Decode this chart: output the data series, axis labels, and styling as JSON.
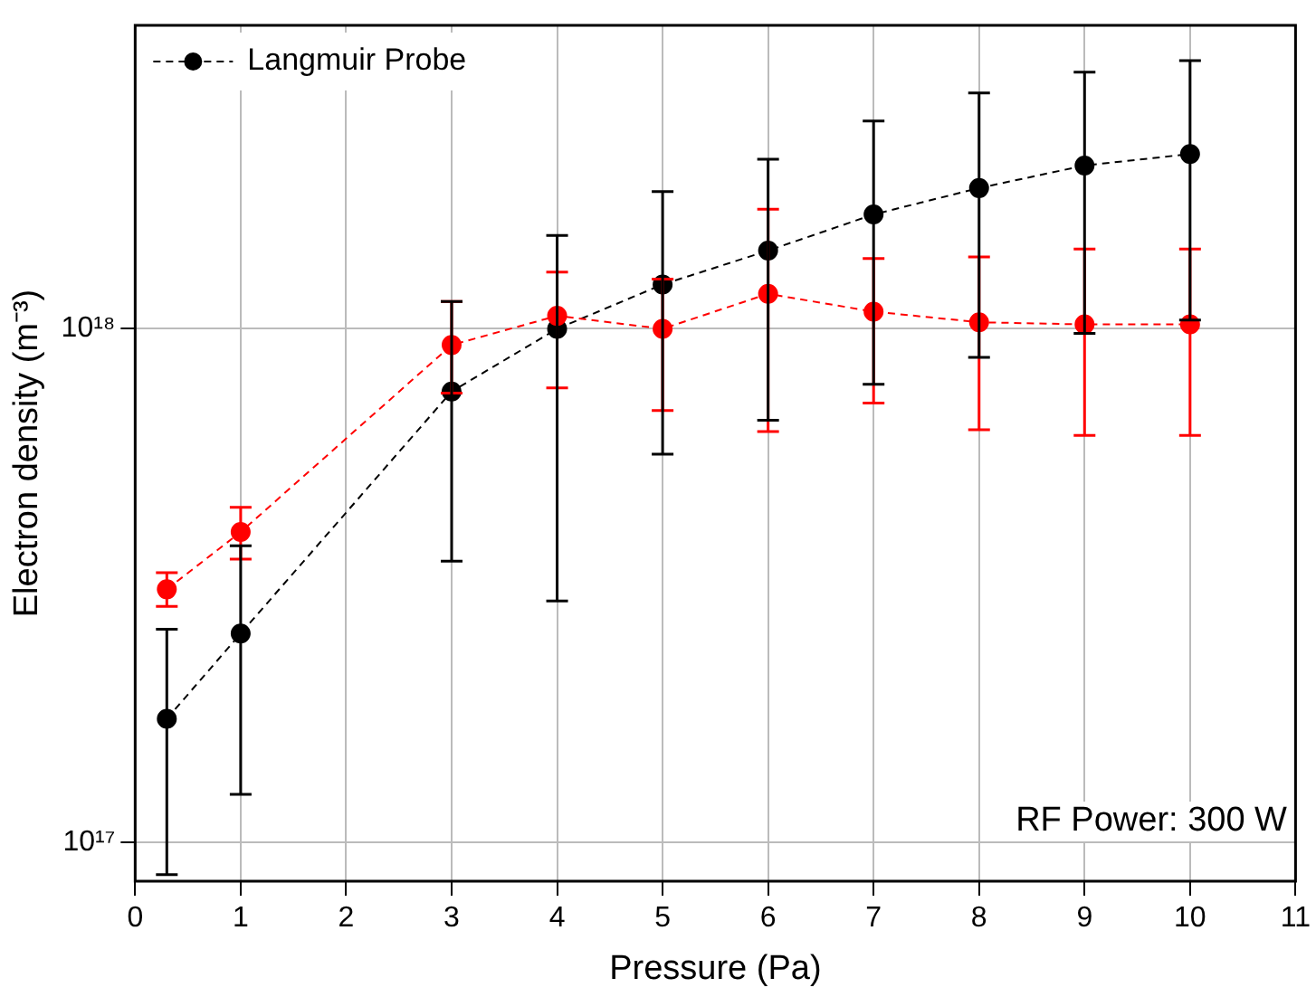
{
  "chart_data": {
    "type": "line",
    "xlabel": "Pressure (Pa)",
    "ylabel": "Electron density (m⁻³)",
    "x": [
      0.3,
      1,
      3,
      4,
      5,
      6,
      7,
      8,
      9,
      10
    ],
    "series": [
      {
        "color": "#ff0000",
        "values": [
          3.11e+17,
          4.02e+17,
          9.3e+17,
          1.06e+18,
          1e+18,
          1.17e+18,
          1.08e+18,
          1.03e+18,
          1.02e+18,
          1.02e+18
        ],
        "errors": [
          [
            2.88e+17,
            3.35e+17
          ],
          [
            3.56e+17,
            4.49e+17
          ],
          [
            7.5e+17,
            1.13e+18
          ],
          [
            7.67e+17,
            1.29e+18
          ],
          [
            6.93e+17,
            1.25e+18
          ],
          [
            6.31e+17,
            1.71e+18
          ],
          [
            7.17e+17,
            1.37e+18
          ],
          [
            6.36e+17,
            1.38e+18
          ],
          [
            6.2e+17,
            1.43e+18
          ],
          [
            6.2e+17,
            1.43e+18
          ]
        ]
      },
      {
        "name": "Langmuir Probe",
        "color": "#000000",
        "values": [
          1.74e+17,
          2.55e+17,
          7.55e+17,
          1e+18,
          1.22e+18,
          1.42e+18,
          1.67e+18,
          1.88e+18,
          2.08e+18,
          2.19e+18
        ],
        "errors": [
          [
            8.65e+16,
            2.6e+17
          ],
          [
            1.24e+17,
            3.78e+17
          ],
          [
            3.53e+17,
            1.13e+18
          ],
          [
            2.95e+17,
            1.52e+18
          ],
          [
            5.7e+17,
            1.85e+18
          ],
          [
            6.64e+17,
            2.14e+18
          ],
          [
            7.8e+17,
            2.54e+18
          ],
          [
            8.8e+17,
            2.88e+18
          ],
          [
            9.8e+17,
            3.16e+18
          ],
          [
            1.04e+18,
            3.33e+18
          ]
        ]
      }
    ],
    "xlim": [
      0,
      11
    ],
    "xticks": [
      0,
      1,
      2,
      3,
      4,
      5,
      6,
      7,
      8,
      9,
      10,
      11
    ],
    "ylim": [
      8.4e+16,
      3.9e+18
    ],
    "yticks": [
      {
        "value": 1e+17,
        "label": "10¹⁷"
      },
      {
        "value": 1e+18,
        "label": "10¹⁸"
      }
    ],
    "log": "y",
    "grid": true,
    "legend": "top left",
    "marker": "circle",
    "line_style": "dashed",
    "annotations": [
      "RF Power: 300 W"
    ]
  }
}
